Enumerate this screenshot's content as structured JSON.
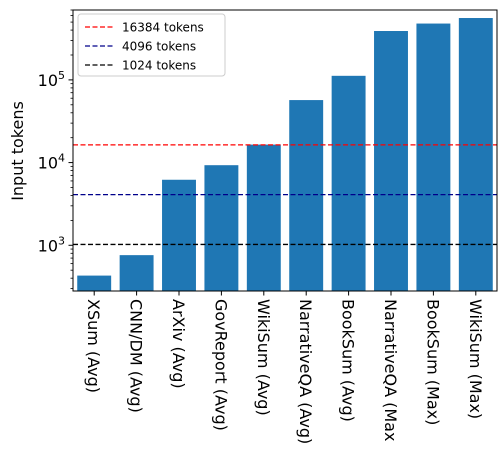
{
  "chart_data": {
    "type": "bar",
    "ylabel": "Input tokens",
    "xlabel": "",
    "yscale": "log",
    "ylim": [
      280,
      700000
    ],
    "bar_color": "#1f77b4",
    "categories": [
      "XSum (Avg)",
      "CNN/DM (Avg)",
      "ArXiv (Avg)",
      "GovReport (Avg)",
      "WikiSum (Avg)",
      "NarrativeQA (Avg)",
      "BookSum (Avg)",
      "NarrativeQA (Max",
      "BookSum (Max)",
      "WikiSum (Max)"
    ],
    "values": [
      430,
      760,
      6200,
      9300,
      16500,
      57000,
      112000,
      390000,
      480000,
      560000
    ],
    "y_ticks": [
      {
        "value": 1000,
        "base": "10",
        "exp": "3"
      },
      {
        "value": 10000,
        "base": "10",
        "exp": "4"
      },
      {
        "value": 100000,
        "base": "10",
        "exp": "5"
      }
    ],
    "hlines": [
      {
        "label": "16384 tokens",
        "value": 16384,
        "color": "#ff0000"
      },
      {
        "label": "4096 tokens",
        "value": 4096,
        "color": "#00008b"
      },
      {
        "label": "1024 tokens",
        "value": 1024,
        "color": "#000000"
      }
    ],
    "legend_position": "upper-left",
    "grid": false
  }
}
